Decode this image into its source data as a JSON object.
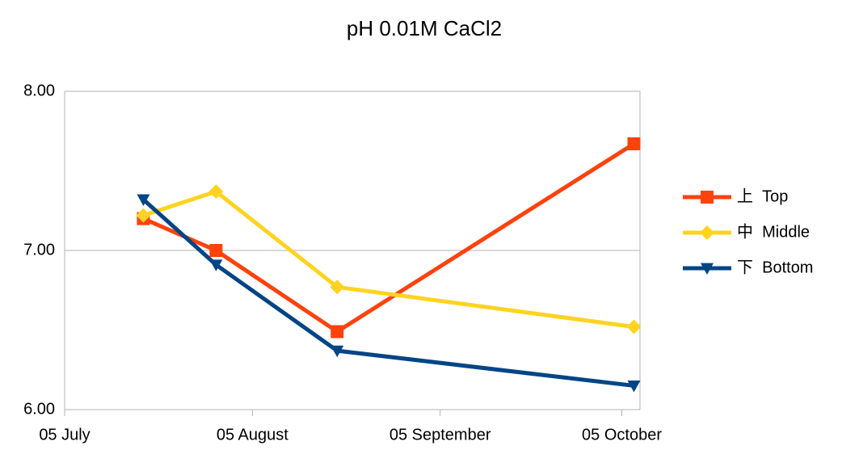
{
  "chart_data": {
    "type": "line",
    "title": "pH 0.01M CaCl2",
    "xlim": [
      0,
      95
    ],
    "xticks": [
      {
        "value": 0,
        "label": "05 July"
      },
      {
        "value": 31,
        "label": "05 August"
      },
      {
        "value": 62,
        "label": "05 September"
      },
      {
        "value": 92,
        "label": "05 October"
      }
    ],
    "x": [
      13,
      25,
      45,
      94
    ],
    "ylim": [
      6,
      8
    ],
    "yticks": [
      {
        "value": 6,
        "label": "6.00"
      },
      {
        "value": 7,
        "label": "7.00"
      },
      {
        "value": 8,
        "label": "8.00"
      }
    ],
    "grid": true,
    "legend": "right",
    "series": [
      {
        "name": "上  Top",
        "color": "#ff420e",
        "marker": "square",
        "values": [
          7.2,
          7.0,
          6.49,
          7.67
        ]
      },
      {
        "name": "中  Middle",
        "color": "#ffd320",
        "marker": "diamond",
        "values": [
          7.22,
          7.37,
          6.77,
          6.52
        ]
      },
      {
        "name": "下  Bottom",
        "color": "#004586",
        "marker": "triangle-down",
        "values": [
          7.32,
          6.91,
          6.37,
          6.15
        ]
      }
    ]
  }
}
